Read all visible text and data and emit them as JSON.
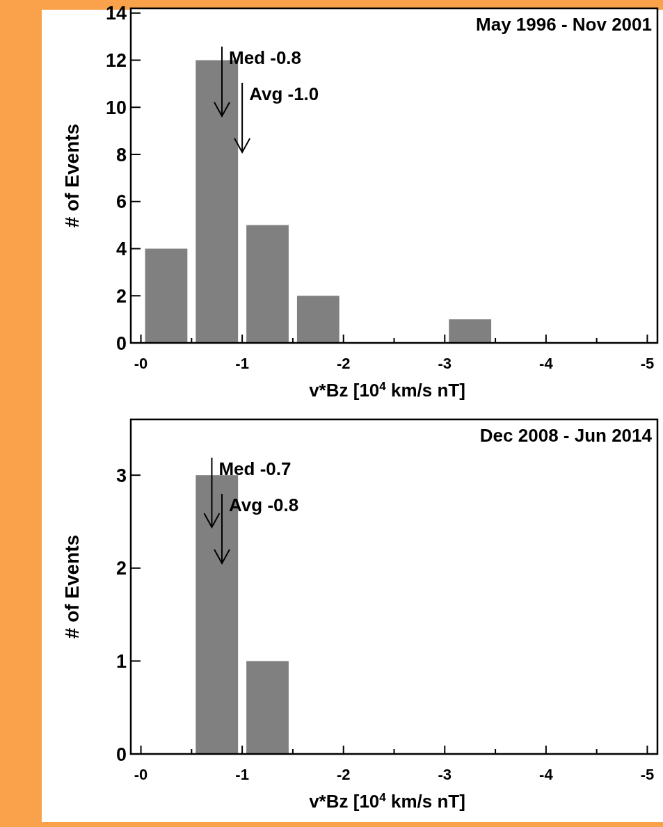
{
  "chart_data": [
    {
      "type": "histogram",
      "title": "May 1996 - Nov 2001",
      "xlabel": "v*Bz [10$^{4}$ km/s nT]",
      "ylabel": "# of Events",
      "bins": [
        0,
        -0.5,
        -1,
        -1.5,
        -2,
        -2.5,
        -3,
        -3.5
      ],
      "values": [
        4,
        12,
        5,
        2,
        0,
        0,
        1
      ],
      "color": "#808080",
      "xlim": [
        0.1,
        -5.1
      ],
      "ylim": [
        0,
        14.2
      ],
      "xticks": [
        {
          "value": 0,
          "label": "-0"
        },
        {
          "value": -0.5,
          "label": null
        },
        -1,
        {
          "value": -1.5,
          "label": null
        },
        -2,
        {
          "value": -2.5,
          "label": null
        },
        -3,
        {
          "value": -3.5,
          "label": null
        },
        -4,
        {
          "value": -4.5,
          "label": null
        },
        -5
      ],
      "yticks": [
        0,
        2,
        4,
        6,
        8,
        10,
        12,
        14
      ],
      "ref_lines": [
        {
          "axis": "x",
          "value": -0.8,
          "label": "Med -0.8"
        },
        {
          "axis": "x",
          "value": -1.0,
          "label": "Avg -1.0"
        }
      ]
    },
    {
      "type": "histogram",
      "title": "Dec 2008 - Jun 2014",
      "xlabel": "v*Bz [10$^{4}$ km/s nT]",
      "ylabel": "# of Events",
      "bins": [
        0,
        -0.5,
        -1,
        -1.5
      ],
      "values": [
        0,
        3,
        1
      ],
      "color": "#808080",
      "xlim": [
        0.1,
        -5.1
      ],
      "ylim": [
        0,
        3.6
      ],
      "xticks": [
        {
          "value": 0,
          "label": "-0"
        },
        {
          "value": -0.5,
          "label": null
        },
        -1,
        {
          "value": -1.5,
          "label": null
        },
        -2,
        {
          "value": -2.5,
          "label": null
        },
        -3,
        {
          "value": -3.5,
          "label": null
        },
        -4,
        {
          "value": -4.5,
          "label": null
        },
        -5
      ],
      "yticks": [
        0,
        1,
        2,
        3
      ],
      "ref_lines": [
        {
          "axis": "x",
          "value": -0.7,
          "label": "Med -0.7"
        },
        {
          "axis": "x",
          "value": -0.8,
          "label": "Avg -0.8"
        }
      ]
    }
  ]
}
